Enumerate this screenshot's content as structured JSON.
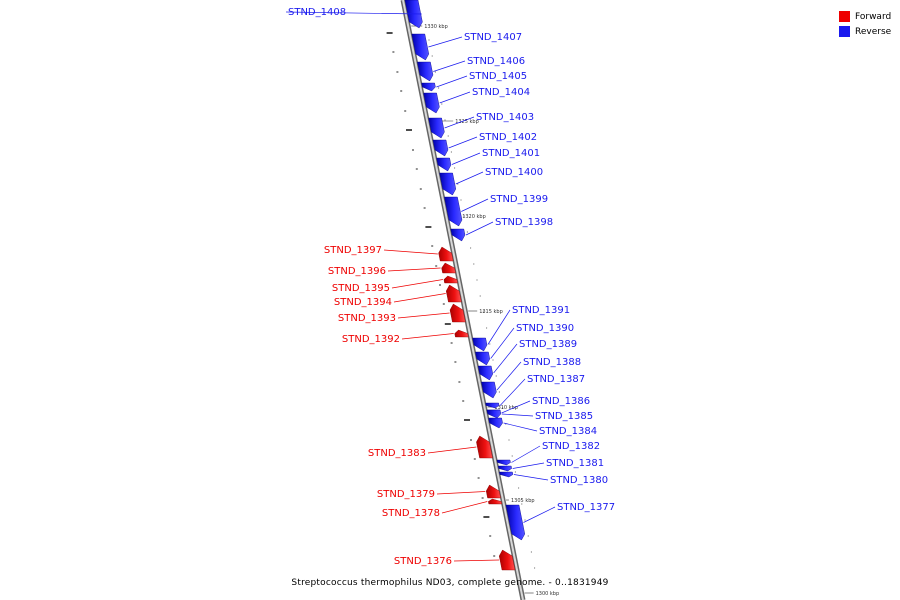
{
  "caption": "Streptococcus thermophilus ND03, complete genome. - 0..1831949",
  "legend": {
    "forward_label": "Forward",
    "reverse_label": "Reverse",
    "forward_color": "#ee0000",
    "reverse_color": "#1a1aee"
  },
  "ticks": [
    "1330 kbp",
    "1325 kbp",
    "1320 kbp",
    "1315 kbp",
    "1310 kbp",
    "1305 kbp",
    "1300 kbp"
  ],
  "genes": [
    {
      "name": "STND_1408",
      "strand": "reverse"
    },
    {
      "name": "STND_1407",
      "strand": "reverse"
    },
    {
      "name": "STND_1406",
      "strand": "reverse"
    },
    {
      "name": "STND_1405",
      "strand": "reverse"
    },
    {
      "name": "STND_1404",
      "strand": "reverse"
    },
    {
      "name": "STND_1403",
      "strand": "reverse"
    },
    {
      "name": "STND_1402",
      "strand": "reverse"
    },
    {
      "name": "STND_1401",
      "strand": "reverse"
    },
    {
      "name": "STND_1400",
      "strand": "reverse"
    },
    {
      "name": "STND_1399",
      "strand": "reverse"
    },
    {
      "name": "STND_1398",
      "strand": "reverse"
    },
    {
      "name": "STND_1397",
      "strand": "forward"
    },
    {
      "name": "STND_1396",
      "strand": "forward"
    },
    {
      "name": "STND_1395",
      "strand": "forward"
    },
    {
      "name": "STND_1394",
      "strand": "forward"
    },
    {
      "name": "STND_1393",
      "strand": "forward"
    },
    {
      "name": "STND_1392",
      "strand": "forward"
    },
    {
      "name": "STND_1391",
      "strand": "reverse"
    },
    {
      "name": "STND_1390",
      "strand": "reverse"
    },
    {
      "name": "STND_1389",
      "strand": "reverse"
    },
    {
      "name": "STND_1388",
      "strand": "reverse"
    },
    {
      "name": "STND_1387",
      "strand": "reverse"
    },
    {
      "name": "STND_1386",
      "strand": "reverse"
    },
    {
      "name": "STND_1385",
      "strand": "reverse"
    },
    {
      "name": "STND_1384",
      "strand": "reverse"
    },
    {
      "name": "STND_1383",
      "strand": "forward"
    },
    {
      "name": "STND_1382",
      "strand": "reverse"
    },
    {
      "name": "STND_1381",
      "strand": "reverse"
    },
    {
      "name": "STND_1380",
      "strand": "reverse"
    },
    {
      "name": "STND_1379",
      "strand": "forward"
    },
    {
      "name": "STND_1378",
      "strand": "forward"
    },
    {
      "name": "STND_1377",
      "strand": "reverse"
    },
    {
      "name": "STND_1376",
      "strand": "forward"
    }
  ]
}
